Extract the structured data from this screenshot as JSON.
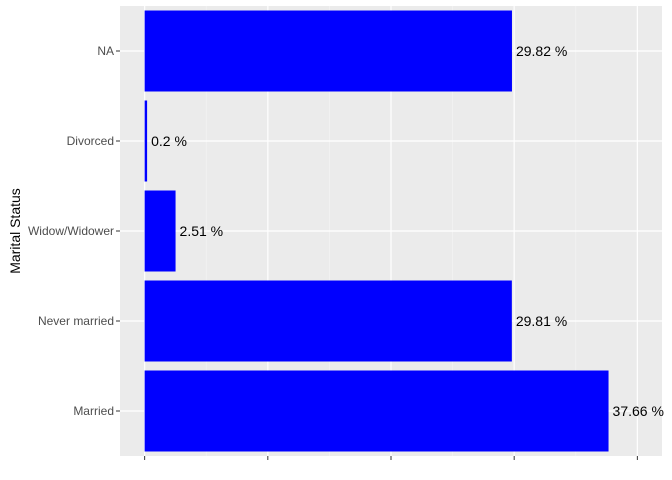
{
  "chart_data": {
    "type": "bar",
    "orientation": "horizontal",
    "title": "",
    "xlabel": "",
    "ylabel": "Marital Status",
    "categories": [
      "Married",
      "Never married",
      "Widow/Widower",
      "Divorced",
      "NA"
    ],
    "values": [
      37.66,
      29.81,
      2.51,
      0.2,
      29.82
    ],
    "value_labels": [
      "37.66 %",
      "29.81 %",
      "2.51 %",
      "0.2 %",
      "29.82 %"
    ],
    "xlim": [
      -2,
      42
    ],
    "x_ticks": [
      0,
      10,
      20,
      30,
      40
    ],
    "x_tick_labels_visible": false,
    "grid": true,
    "legend": "none",
    "colors": {
      "bar": "#0000ff",
      "panel_background": "#ebebeb",
      "grid_major": "#ffffff",
      "grid_minor": "#f5f5f5",
      "tick_mark": "#333333",
      "tick_text": "#4d4d4d"
    }
  }
}
